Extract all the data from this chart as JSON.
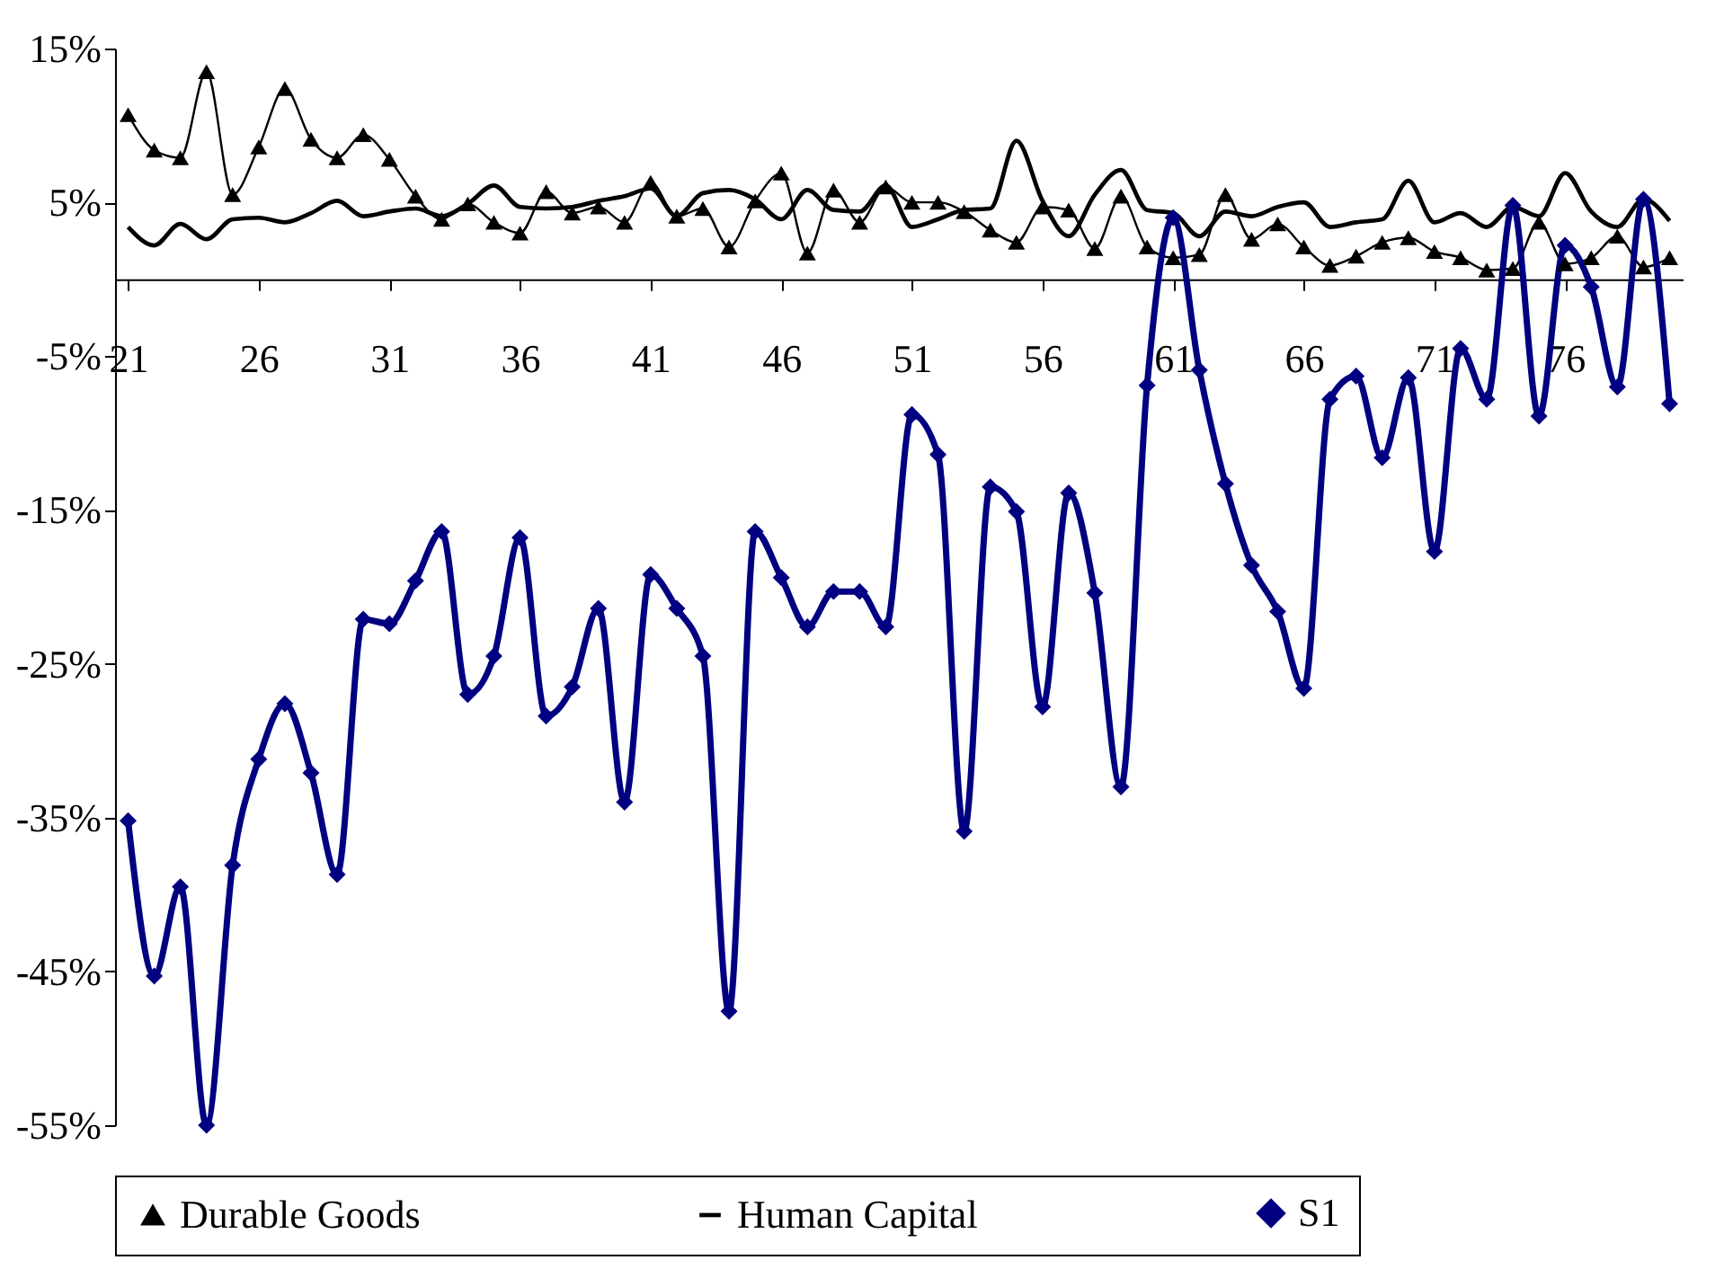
{
  "chart_data": {
    "type": "line",
    "categories": [
      "21",
      null,
      null,
      null,
      null,
      "26",
      null,
      null,
      null,
      null,
      "31",
      null,
      null,
      null,
      null,
      "36",
      null,
      null,
      null,
      null,
      "41",
      null,
      null,
      null,
      null,
      "46",
      null,
      null,
      null,
      null,
      "51",
      null,
      null,
      null,
      null,
      "56",
      null,
      null,
      null,
      null,
      "61",
      null,
      null,
      null,
      null,
      "66",
      null,
      null,
      null,
      null,
      "71",
      null,
      null,
      null,
      null,
      "76",
      null,
      null,
      null,
      null
    ],
    "series": [
      {
        "name": "Durable Goods",
        "color": "#000000",
        "marker": "triangle",
        "values": [
          10.7,
          8.4,
          7.9,
          13.5,
          5.5,
          8.6,
          12.4,
          9.1,
          7.9,
          9.4,
          7.8,
          5.4,
          3.9,
          4.9,
          3.7,
          3.0,
          5.7,
          4.3,
          4.7,
          3.7,
          6.3,
          4.1,
          4.6,
          2.1,
          5.1,
          6.9,
          1.7,
          5.8,
          3.7,
          6.0,
          5.0,
          5.0,
          4.4,
          3.2,
          2.4,
          4.7,
          4.5,
          2.0,
          5.4,
          2.1,
          1.4,
          1.6,
          5.5,
          2.6,
          3.6,
          2.1,
          0.9,
          1.5,
          2.4,
          2.7,
          1.8,
          1.4,
          0.6,
          0.7,
          3.7,
          1.0,
          1.4,
          2.8,
          0.8,
          1.4
        ]
      },
      {
        "name": "Human Capital",
        "color": "#000000",
        "marker": "none",
        "values": [
          3.4,
          2.2,
          3.6,
          2.6,
          3.9,
          4.0,
          3.7,
          4.3,
          5.1,
          4.1,
          4.4,
          4.6,
          4.1,
          4.9,
          6.1,
          4.7,
          4.6,
          4.7,
          5.1,
          5.4,
          5.9,
          4.1,
          5.6,
          5.8,
          5.2,
          3.9,
          5.8,
          4.5,
          4.4,
          6.1,
          3.4,
          3.9,
          4.5,
          4.6,
          9.0,
          5.1,
          2.8,
          5.5,
          7.1,
          4.5,
          4.3,
          2.8,
          4.4,
          4.1,
          4.7,
          5.0,
          3.4,
          3.7,
          3.9,
          6.4,
          3.7,
          4.3,
          3.4,
          4.7,
          4.1,
          6.9,
          4.4,
          3.4,
          5.2,
          3.8
        ]
      },
      {
        "name": "S1",
        "color": "#000080",
        "marker": "diamond",
        "values": [
          -35.2,
          -45.3,
          -39.5,
          -55.0,
          -38.1,
          -31.2,
          -27.6,
          -32.1,
          -38.7,
          -22.1,
          -22.4,
          -19.6,
          -16.4,
          -27.0,
          -24.5,
          -16.8,
          -28.4,
          -26.5,
          -21.4,
          -34.0,
          -19.2,
          -21.4,
          -24.5,
          -47.6,
          -16.4,
          -19.4,
          -22.6,
          -20.3,
          -20.3,
          -22.6,
          -8.8,
          -11.4,
          -35.9,
          -13.5,
          -15.1,
          -27.8,
          -13.9,
          -20.4,
          -33.0,
          -6.9,
          4.0,
          -5.9,
          -13.3,
          -18.6,
          -21.6,
          -26.6,
          -7.8,
          -6.3,
          -11.6,
          -6.4,
          -17.7,
          -4.5,
          -7.8,
          4.8,
          -8.9,
          2.2,
          -0.5,
          -7.0,
          5.2,
          -8.1
        ]
      }
    ],
    "ylim": [
      -55,
      15
    ],
    "yticks": [
      {
        "value": 15,
        "label": "15%"
      },
      {
        "value": 5,
        "label": "5%"
      },
      {
        "value": -5,
        "label": "-5%"
      },
      {
        "value": -15,
        "label": "-15%"
      },
      {
        "value": -25,
        "label": "-25%"
      },
      {
        "value": -35,
        "label": "-35%"
      },
      {
        "value": -45,
        "label": "-45%"
      },
      {
        "value": -55,
        "label": "-55%"
      }
    ],
    "legend": "bottom"
  }
}
